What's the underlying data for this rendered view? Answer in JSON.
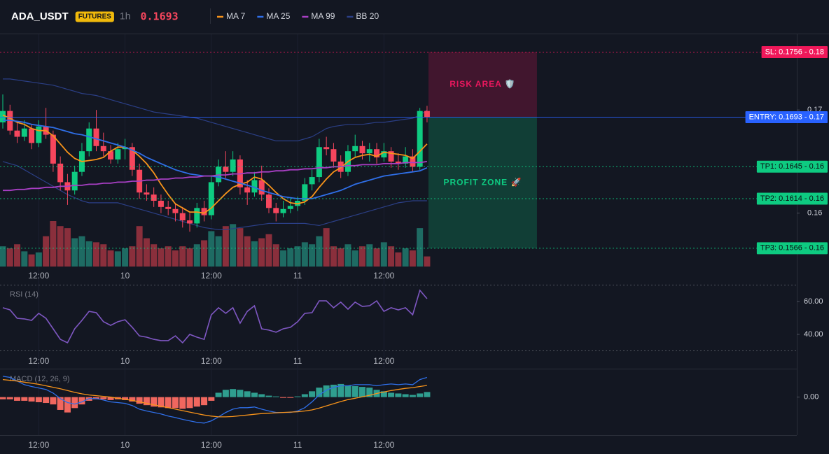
{
  "header": {
    "symbol": "ADA_USDT",
    "badge": "FUTURES",
    "interval": "1h",
    "price": 0.1693
  },
  "chart_data": [
    {
      "type": "candlestick",
      "categories": [
        null,
        null,
        null,
        null,
        null,
        "12:00",
        null,
        null,
        null,
        null,
        null,
        null,
        null,
        null,
        null,
        null,
        null,
        "10",
        null,
        null,
        null,
        null,
        null,
        null,
        null,
        null,
        null,
        null,
        null,
        "12:00",
        null,
        null,
        null,
        null,
        null,
        null,
        null,
        null,
        null,
        null,
        null,
        "11",
        null,
        null,
        null,
        null,
        null,
        null,
        null,
        null,
        null,
        null,
        null,
        "12:00",
        null,
        null,
        null,
        null,
        null,
        null
      ],
      "open": [
        0.1688,
        0.1699,
        0.168,
        0.1674,
        0.1682,
        0.1668,
        0.1684,
        0.1676,
        0.1648,
        0.163,
        0.1622,
        0.164,
        0.166,
        0.1682,
        0.1665,
        0.166,
        0.1652,
        0.1662,
        0.1664,
        0.1642,
        0.162,
        0.1618,
        0.1612,
        0.1606,
        0.1604,
        0.16,
        0.1593,
        0.159,
        0.1605,
        0.1598,
        0.163,
        0.1645,
        0.164,
        0.1652,
        0.1625,
        0.162,
        0.1632,
        0.1618,
        0.1605,
        0.16,
        0.1604,
        0.1607,
        0.1612,
        0.1628,
        0.1635,
        0.1664,
        0.1662,
        0.165,
        0.164,
        0.166,
        0.1665,
        0.1658,
        0.1662,
        0.1654,
        0.166,
        0.165,
        0.1648,
        0.1655,
        0.1645,
        0.1699
      ],
      "high": [
        0.1715,
        0.1705,
        0.1688,
        0.169,
        0.1686,
        0.169,
        0.1702,
        0.168,
        0.1655,
        0.1638,
        0.1646,
        0.1668,
        0.1688,
        0.17,
        0.1678,
        0.1666,
        0.1668,
        0.1672,
        0.1668,
        0.1648,
        0.1628,
        0.1625,
        0.1618,
        0.1612,
        0.161,
        0.1606,
        0.16,
        0.161,
        0.1612,
        0.1636,
        0.1652,
        0.166,
        0.166,
        0.1656,
        0.1632,
        0.164,
        0.1646,
        0.1624,
        0.161,
        0.1612,
        0.1614,
        0.1616,
        0.1634,
        0.1642,
        0.1672,
        0.1674,
        0.1668,
        0.1656,
        0.1666,
        0.1676,
        0.167,
        0.1668,
        0.1668,
        0.1668,
        0.1664,
        0.1658,
        0.1664,
        0.1662,
        0.1702,
        0.1704
      ],
      "low": [
        0.1682,
        0.1676,
        0.1668,
        0.167,
        0.1662,
        0.1664,
        0.1672,
        0.164,
        0.1622,
        0.1608,
        0.1618,
        0.1636,
        0.1655,
        0.166,
        0.1655,
        0.1648,
        0.1648,
        0.1652,
        0.1636,
        0.1614,
        0.1612,
        0.1606,
        0.16,
        0.1598,
        0.1592,
        0.1586,
        0.1582,
        0.1586,
        0.1592,
        0.1594,
        0.1626,
        0.1634,
        0.1636,
        0.1618,
        0.1608,
        0.1616,
        0.1612,
        0.16,
        0.1592,
        0.1596,
        0.16,
        0.1602,
        0.1608,
        0.1622,
        0.163,
        0.1656,
        0.1644,
        0.1634,
        0.1636,
        0.1654,
        0.1652,
        0.165,
        0.1648,
        0.165,
        0.1644,
        0.1642,
        0.1644,
        0.164,
        0.1642,
        0.1688
      ],
      "close": [
        0.1699,
        0.168,
        0.1674,
        0.1682,
        0.1668,
        0.1684,
        0.1676,
        0.1648,
        0.163,
        0.1622,
        0.164,
        0.166,
        0.1682,
        0.1665,
        0.166,
        0.1652,
        0.1662,
        0.1664,
        0.1642,
        0.162,
        0.1618,
        0.1612,
        0.1606,
        0.1604,
        0.16,
        0.1593,
        0.159,
        0.1605,
        0.1598,
        0.163,
        0.1645,
        0.164,
        0.1652,
        0.1625,
        0.162,
        0.1632,
        0.1618,
        0.1605,
        0.16,
        0.1604,
        0.1607,
        0.1612,
        0.1628,
        0.1635,
        0.1664,
        0.1662,
        0.165,
        0.164,
        0.166,
        0.1665,
        0.1658,
        0.1662,
        0.1654,
        0.166,
        0.165,
        0.1648,
        0.1655,
        0.1645,
        0.1699,
        0.1693
      ],
      "volume": [
        20,
        18,
        22,
        15,
        12,
        14,
        30,
        45,
        40,
        38,
        28,
        30,
        25,
        24,
        22,
        16,
        15,
        18,
        20,
        40,
        28,
        22,
        18,
        20,
        16,
        20,
        18,
        22,
        26,
        35,
        30,
        40,
        42,
        38,
        30,
        25,
        28,
        32,
        22,
        16,
        18,
        20,
        24,
        22,
        30,
        38,
        20,
        18,
        22,
        16,
        20,
        22,
        18,
        24,
        20,
        14,
        18,
        16,
        38,
        10
      ],
      "up_color": "#0ecb81",
      "down_color": "#f6465d",
      "ylim": [
        0.1532,
        0.1774
      ],
      "yticks": [
        0.17,
        0.16
      ],
      "series": [
        {
          "name": "MA 7",
          "color": "#f7931a",
          "values": [
            0.1695,
            0.1692,
            0.1688,
            0.1686,
            0.1682,
            0.168,
            0.168,
            0.1675,
            0.1667,
            0.1659,
            0.1653,
            0.165,
            0.1651,
            0.1652,
            0.1654,
            0.166,
            0.1664,
            0.1664,
            0.1661,
            0.1655,
            0.1648,
            0.1639,
            0.1628,
            0.1618,
            0.1609,
            0.1605,
            0.1601,
            0.1601,
            0.16,
            0.1605,
            0.1612,
            0.1619,
            0.1625,
            0.1628,
            0.163,
            0.1635,
            0.1633,
            0.1627,
            0.162,
            0.1614,
            0.161,
            0.1609,
            0.1611,
            0.1616,
            0.1625,
            0.1633,
            0.164,
            0.1644,
            0.165,
            0.1654,
            0.1656,
            0.1657,
            0.1655,
            0.1659,
            0.1658,
            0.1657,
            0.1656,
            0.1653,
            0.166,
            0.1667
          ]
        },
        {
          "name": "MA 25",
          "color": "#2f6fe8",
          "values": [
            0.169,
            0.169,
            0.1689,
            0.1688,
            0.1686,
            0.1685,
            0.1684,
            0.1683,
            0.1681,
            0.1679,
            0.1677,
            0.1676,
            0.1674,
            0.1672,
            0.167,
            0.1668,
            0.1666,
            0.1664,
            0.1661,
            0.1658,
            0.1654,
            0.1651,
            0.1648,
            0.1645,
            0.1642,
            0.164,
            0.1638,
            0.1637,
            0.1636,
            0.1636,
            0.1635,
            0.1633,
            0.1631,
            0.1629,
            0.1627,
            0.1625,
            0.1622,
            0.162,
            0.1618,
            0.1616,
            0.1615,
            0.1614,
            0.1614,
            0.1614,
            0.1616,
            0.1618,
            0.162,
            0.1622,
            0.1625,
            0.1628,
            0.163,
            0.1632,
            0.1634,
            0.1636,
            0.1637,
            0.1638,
            0.1639,
            0.164,
            0.1641,
            0.1644
          ]
        },
        {
          "name": "MA 99",
          "color": "#a83fc4",
          "values": [
            0.1622,
            0.1622,
            0.1623,
            0.1623,
            0.1624,
            0.1624,
            0.1625,
            0.1625,
            0.1626,
            0.1626,
            0.1627,
            0.1627,
            0.1628,
            0.1628,
            0.1629,
            0.1629,
            0.163,
            0.163,
            0.1631,
            0.1631,
            0.1632,
            0.1632,
            0.1633,
            0.1633,
            0.1634,
            0.1634,
            0.1635,
            0.1635,
            0.1636,
            0.1636,
            0.1637,
            0.1637,
            0.1638,
            0.1638,
            0.1639,
            0.1639,
            0.164,
            0.164,
            0.1641,
            0.1641,
            0.1642,
            0.1642,
            0.1643,
            0.1643,
            0.1644,
            0.1644,
            0.1645,
            0.1645,
            0.1646,
            0.1646,
            0.1647,
            0.1647,
            0.1647,
            0.1648,
            0.1648,
            0.1648,
            0.1649,
            0.1649,
            0.1649,
            0.165
          ]
        },
        {
          "name": "BB 20",
          "color": "#2b3f86",
          "upper": [
            0.173,
            0.173,
            0.1729,
            0.1728,
            0.1727,
            0.1726,
            0.1725,
            0.1724,
            0.1722,
            0.172,
            0.1718,
            0.1716,
            0.1715,
            0.1714,
            0.1712,
            0.171,
            0.1708,
            0.1706,
            0.1704,
            0.1702,
            0.17,
            0.1698,
            0.1697,
            0.1696,
            0.1695,
            0.1694,
            0.1693,
            0.1692,
            0.169,
            0.1688,
            0.1686,
            0.1684,
            0.1682,
            0.168,
            0.1678,
            0.1676,
            0.1674,
            0.1672,
            0.167,
            0.167,
            0.167,
            0.167,
            0.1672,
            0.1674,
            0.1678,
            0.1682,
            0.1684,
            0.1685,
            0.1686,
            0.1686,
            0.1686,
            0.1687,
            0.1688,
            0.1688,
            0.1689,
            0.169,
            0.1691,
            0.1692,
            0.1695,
            0.17
          ],
          "lower": [
            0.165,
            0.1648,
            0.1646,
            0.1642,
            0.1638,
            0.1634,
            0.163,
            0.1626,
            0.1622,
            0.1618,
            0.1615,
            0.1612,
            0.161,
            0.161,
            0.161,
            0.161,
            0.161,
            0.1608,
            0.1606,
            0.1604,
            0.1602,
            0.16,
            0.1598,
            0.1596,
            0.1594,
            0.1592,
            0.159,
            0.1588,
            0.1586,
            0.1585,
            0.1584,
            0.1584,
            0.1585,
            0.1586,
            0.1587,
            0.1588,
            0.1589,
            0.159,
            0.159,
            0.159,
            0.159,
            0.159,
            0.159,
            0.1589,
            0.1588,
            0.159,
            0.1592,
            0.1594,
            0.1596,
            0.1598,
            0.16,
            0.1602,
            0.1604,
            0.1606,
            0.1608,
            0.161,
            0.1611,
            0.1612,
            0.1612,
            0.1612
          ]
        }
      ],
      "levels": [
        {
          "value": 0.1756,
          "label": "SL: 0.1756 - 0.18",
          "color": "#f0185a",
          "text_color": "#ffffff",
          "style": "dotted"
        },
        {
          "value": 0.1693,
          "label": "ENTRY: 0.1693 - 0.17",
          "color": "#2962ff",
          "text_color": "#ffffff",
          "style": "solid"
        },
        {
          "value": 0.1645,
          "label": "TP1: 0.1645 - 0.16",
          "color": "#0ecb81",
          "text_color": "#0b0e11",
          "style": "dotted"
        },
        {
          "value": 0.1614,
          "label": "TP2: 0.1614 - 0.16",
          "color": "#0ecb81",
          "text_color": "#0b0e11",
          "style": "dotted"
        },
        {
          "value": 0.1566,
          "label": "TP3: 0.1566 - 0.16",
          "color": "#0ecb81",
          "text_color": "#0b0e11",
          "style": "dotted"
        }
      ],
      "zones": [
        {
          "label": "RISK AREA 🛡️",
          "from": 0.1756,
          "to": 0.1693,
          "color": "#e8175d"
        },
        {
          "label": "PROFIT ZONE 🚀",
          "from": 0.1693,
          "to": 0.1566,
          "color": "#0ecb81"
        }
      ]
    },
    {
      "type": "line",
      "title": "RSI (14)",
      "color": "#7e57c2",
      "values": [
        56.2,
        54.9,
        49.8,
        49.4,
        48.5,
        52.8,
        49.8,
        43.4,
        37.0,
        34.9,
        43.4,
        48.5,
        54.0,
        53.2,
        47.7,
        45.5,
        47.7,
        48.9,
        44.3,
        39.1,
        38.3,
        37.0,
        36.2,
        36.2,
        39.1,
        34.9,
        40.0,
        38.3,
        37.0,
        51.9,
        56.2,
        52.8,
        56.2,
        46.8,
        54.0,
        57.4,
        43.4,
        42.6,
        41.3,
        43.4,
        44.3,
        47.7,
        52.8,
        53.2,
        60.4,
        60.4,
        56.2,
        59.6,
        55.3,
        59.6,
        57.0,
        57.4,
        60.4,
        54.0,
        56.2,
        54.9,
        56.2,
        51.9,
        66.8,
        61.7
      ],
      "ylim": [
        20,
        70
      ],
      "yticks": [
        {
          "value": 60,
          "label": "60.00"
        },
        {
          "value": 40,
          "label": "40.00"
        }
      ],
      "bands": [
        30,
        70
      ]
    },
    {
      "type": "macd",
      "title": "MACD (12, 26, 9)",
      "macd": [
        0.00057,
        0.00054,
        0.00044,
        0.00034,
        0.00029,
        0.00025,
        0.00021,
        0.00011,
        -4e-05,
        -0.00015,
        -0.00019,
        -0.00013,
        -4e-05,
        -4e-05,
        -8e-05,
        -0.00013,
        -0.00015,
        -0.00017,
        -0.00023,
        -0.00033,
        -0.00038,
        -0.00042,
        -0.00046,
        -0.00052,
        -0.00056,
        -0.00061,
        -0.00065,
        -0.00069,
        -0.00071,
        -0.00065,
        -0.00054,
        -0.00042,
        -0.00033,
        -0.00029,
        -0.00029,
        -0.00027,
        -0.00033,
        -0.00038,
        -0.00042,
        -0.00042,
        -0.00042,
        -0.00038,
        -0.00029,
        -0.00013,
        6e-05,
        0.00019,
        0.00027,
        0.00031,
        0.00031,
        0.00034,
        0.00034,
        0.00034,
        0.00031,
        0.00034,
        0.00036,
        0.00034,
        0.00036,
        0.00034,
        0.00048,
        0.00054
      ],
      "signal": [
        0.00048,
        0.00046,
        0.00044,
        0.00041,
        0.00038,
        0.00035,
        0.00031,
        0.00027,
        0.00023,
        0.00018,
        0.00013,
        9e-05,
        6e-05,
        4e-05,
        2e-05,
        0,
        -3e-05,
        -6e-05,
        -9e-05,
        -0.00013,
        -0.00017,
        -0.00021,
        -0.00025,
        -0.00029,
        -0.00033,
        -0.00037,
        -0.00041,
        -0.00045,
        -0.00049,
        -0.00052,
        -0.00054,
        -0.00054,
        -0.00053,
        -0.00051,
        -0.00049,
        -0.00047,
        -0.00045,
        -0.00044,
        -0.00043,
        -0.00042,
        -0.00041,
        -0.0004,
        -0.00038,
        -0.00035,
        -0.0003,
        -0.00024,
        -0.00018,
        -0.00012,
        -7e-05,
        -3e-05,
        1e-05,
        5e-05,
        0.0001,
        0.00014,
        0.00018,
        0.00021,
        0.00024,
        0.00026,
        0.00029,
        0.00032
      ],
      "histogram": [
        -6e-05,
        -6e-05,
        -0.0001,
        -0.0001,
        -0.00012,
        -0.00014,
        -0.00016,
        -0.0002,
        -0.00035,
        -0.00042,
        -0.0003,
        -0.0002,
        -0.0001,
        -6e-05,
        -6e-05,
        -8e-05,
        -6e-05,
        -8e-05,
        -0.00012,
        -0.00018,
        -0.00022,
        -0.00026,
        -0.00028,
        -0.0003,
        -0.0003,
        -0.00032,
        -0.0003,
        -0.00026,
        -0.00022,
        -0.0001,
        0.00012,
        0.0002,
        0.00022,
        0.0002,
        0.00016,
        0.00012,
        8e-05,
        4e-05,
        2e-05,
        -2e-05,
        -2e-05,
        2e-05,
        8e-05,
        0.00016,
        0.00026,
        0.00032,
        0.00034,
        0.00036,
        0.00032,
        0.0003,
        0.00028,
        0.00026,
        0.0002,
        0.00016,
        0.00012,
        0.0001,
        8e-05,
        6e-05,
        0.0001,
        0.00014
      ],
      "macd_color": "#2f6fe8",
      "signal_color": "#f7931a",
      "up_color": "#2f9e8f",
      "down_color": "#f0675f",
      "ylim": [
        -0.00104,
        0.00076
      ],
      "yticks": [
        {
          "value": 0,
          "label": "0.00"
        }
      ]
    }
  ]
}
